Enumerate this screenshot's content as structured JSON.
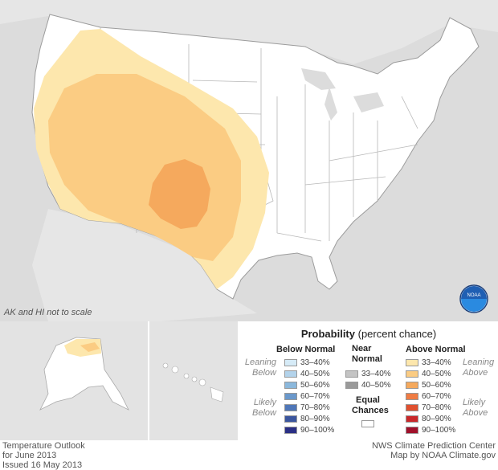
{
  "map": {
    "scale_note": "AK and HI not to scale"
  },
  "footer": {
    "title": "Temperature Outlook",
    "period": "for June 2013",
    "issued": "Issued 16 May 2013",
    "source": "NWS Climate Prediction Center",
    "credit": "Map by NOAA Climate.gov"
  },
  "logo": {
    "text": "NOAA"
  },
  "legend": {
    "title_bold": "Probability",
    "title_rest": " (percent chance)",
    "below": {
      "heading": "Below Normal",
      "leaning": "Leaning Below",
      "likely": "Likely Below",
      "items": [
        {
          "label": "33–40%",
          "color": "#d6ebf7"
        },
        {
          "label": "40–50%",
          "color": "#b3d3eb"
        },
        {
          "label": "50–60%",
          "color": "#8bb8dc"
        },
        {
          "label": "60–70%",
          "color": "#6a98cb"
        },
        {
          "label": "70–80%",
          "color": "#4f77b8"
        },
        {
          "label": "80–90%",
          "color": "#3b569e"
        },
        {
          "label": "90–100%",
          "color": "#2a2f85"
        }
      ]
    },
    "near": {
      "heading": "Near Normal",
      "items": [
        {
          "label": "33–40%",
          "color": "#c4c4c4"
        },
        {
          "label": "40–50%",
          "color": "#9a9a9a"
        }
      ]
    },
    "equal": {
      "heading": "Equal Chances",
      "color": "#ffffff"
    },
    "above": {
      "heading": "Above Normal",
      "leaning": "Leaning Above",
      "likely": "Likely Above",
      "items": [
        {
          "label": "33–40%",
          "color": "#fde7ad"
        },
        {
          "label": "40–50%",
          "color": "#fbcc83"
        },
        {
          "label": "50–60%",
          "color": "#f5a95d"
        },
        {
          "label": "60–70%",
          "color": "#ef7c44"
        },
        {
          "label": "70–80%",
          "color": "#e0502f"
        },
        {
          "label": "80–90%",
          "color": "#c9282a"
        },
        {
          "label": "90–100%",
          "color": "#a0102a"
        }
      ]
    }
  }
}
